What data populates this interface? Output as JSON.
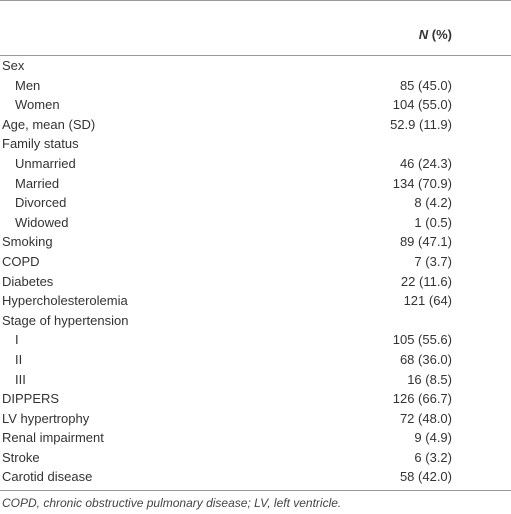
{
  "table": {
    "header": {
      "n": "N",
      "pct": "(%)"
    },
    "rows": [
      {
        "label": "Sex",
        "items": [
          {
            "label": "Men",
            "value": "85 (45.0)"
          },
          {
            "label": "Women",
            "value": "104 (55.0)"
          }
        ]
      },
      {
        "label": "Age, mean (SD)",
        "value": "52.9 (11.9)"
      },
      {
        "label": "Family status",
        "items": [
          {
            "label": "Unmarried",
            "value": "46 (24.3)"
          },
          {
            "label": "Married",
            "value": "134 (70.9)"
          },
          {
            "label": "Divorced",
            "value": "8 (4.2)"
          },
          {
            "label": "Widowed",
            "value": "1 (0.5)"
          }
        ]
      },
      {
        "label": "Smoking",
        "value": "89 (47.1)"
      },
      {
        "label": "COPD",
        "value": "7 (3.7)"
      },
      {
        "label": "Diabetes",
        "value": "22 (11.6)"
      },
      {
        "label": "Hypercholesterolemia",
        "value": "121 (64)"
      },
      {
        "label": "Stage of hypertension",
        "items": [
          {
            "label": "I",
            "value": "105 (55.6)"
          },
          {
            "label": "II",
            "value": "68 (36.0)"
          },
          {
            "label": "III",
            "value": "16 (8.5)"
          }
        ]
      },
      {
        "label": "DIPPERS",
        "value": "126 (66.7)"
      },
      {
        "label": "LV hypertrophy",
        "value": "72 (48.0)"
      },
      {
        "label": "Renal impairment",
        "value": "9 (4.9)"
      },
      {
        "label": "Stroke",
        "value": "6 (3.2)"
      },
      {
        "label": "Carotid disease",
        "value": "58 (42.0)"
      }
    ],
    "footnote": "COPD, chronic obstructive pulmonary disease; LV, left ventricle."
  }
}
